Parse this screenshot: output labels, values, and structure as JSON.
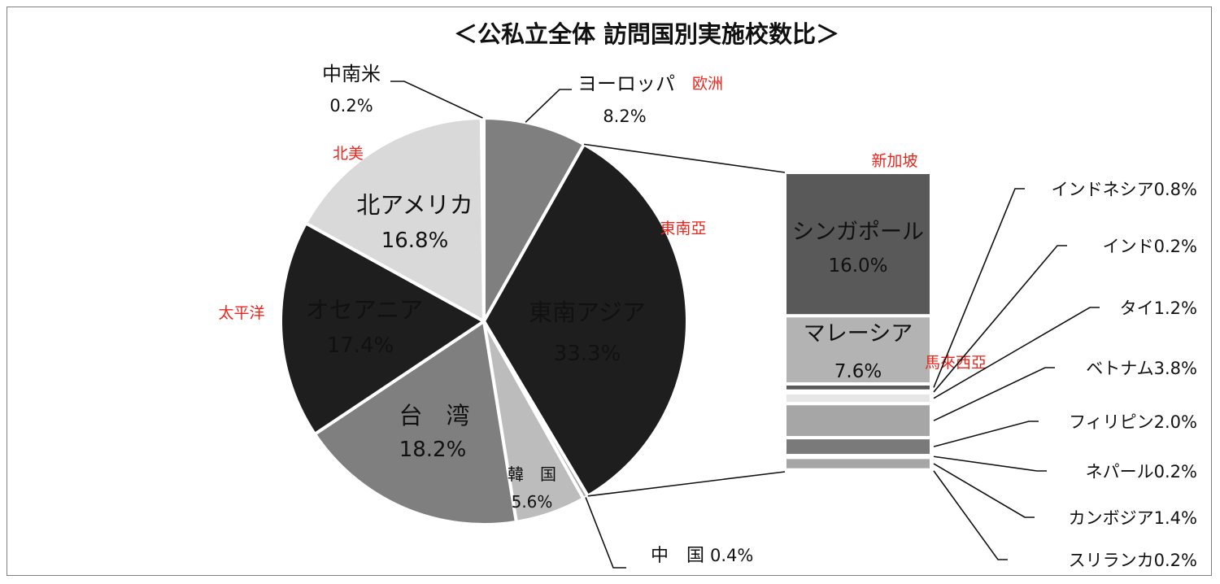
{
  "chart_data": {
    "type": "pie",
    "title": "＜公私立全体 訪問国別実施校数比＞",
    "slices": [
      {
        "key": "europe",
        "label": "ヨーロッパ",
        "percent_label": "8.2%",
        "value": 8.2,
        "color": "#7f7f7f",
        "region_note": "欧洲"
      },
      {
        "key": "sea",
        "label": "東南アジア",
        "percent_label": "33.3%",
        "value": 33.3,
        "color": "#1e1e1e",
        "region_note": "東南亞"
      },
      {
        "key": "china",
        "label": "中　国",
        "percent_label": "0.4%",
        "value": 0.4,
        "color": "#a6a6a6"
      },
      {
        "key": "korea",
        "label": "韓　国",
        "percent_label": "5.6%",
        "value": 5.6,
        "color": "#bcbcbc"
      },
      {
        "key": "taiwan",
        "label": "台　湾",
        "percent_label": "18.2%",
        "value": 18.2,
        "color": "#7f7f7f"
      },
      {
        "key": "oceania",
        "label": "オセアニア",
        "percent_label": "17.4%",
        "value": 17.4,
        "color": "#1e1e1e",
        "region_note": "太平洋"
      },
      {
        "key": "namerica",
        "label": "北アメリカ",
        "percent_label": "16.8%",
        "value": 16.8,
        "color": "#d9d9d9",
        "region_note": "北美"
      },
      {
        "key": "latam",
        "label": "中南米",
        "percent_label": "0.2%",
        "value": 0.2,
        "color": "#8c8c8c"
      }
    ],
    "breakdown": {
      "parent": "東南アジア",
      "items": [
        {
          "key": "singapore",
          "label": "シンガポール",
          "percent_label": "16.0%",
          "value": 16.0,
          "color": "#595959",
          "region_note": "新加坡"
        },
        {
          "key": "malaysia",
          "label": "マレーシア",
          "percent_label": "7.6%",
          "value": 7.6,
          "color": "#b3b3b3",
          "region_note": "馬來西亞"
        },
        {
          "key": "indonesia",
          "label": "インドネシア",
          "percent_label": "0.8%",
          "value": 0.8,
          "color": "#595959"
        },
        {
          "key": "india",
          "label": "インド",
          "percent_label": "0.2%",
          "value": 0.2,
          "color": "#d9d9d9"
        },
        {
          "key": "thailand",
          "label": "タイ",
          "percent_label": "1.2%",
          "value": 1.2,
          "color": "#e6e6e6"
        },
        {
          "key": "vietnam",
          "label": "ベトナム",
          "percent_label": "3.8%",
          "value": 3.8,
          "color": "#a6a6a6"
        },
        {
          "key": "philippines",
          "label": "フィリピン",
          "percent_label": "2.0%",
          "value": 2.0,
          "color": "#7a7a7a"
        },
        {
          "key": "nepal",
          "label": "ネパール",
          "percent_label": "0.2%",
          "value": 0.2,
          "color": "#d9d9d9"
        },
        {
          "key": "cambodia",
          "label": "カンボジア",
          "percent_label": "1.4%",
          "value": 1.4,
          "color": "#a6a6a6"
        },
        {
          "key": "srilanka",
          "label": "スリランカ",
          "percent_label": "0.2%",
          "value": 0.2,
          "color": "#d9d9d9"
        }
      ]
    }
  }
}
